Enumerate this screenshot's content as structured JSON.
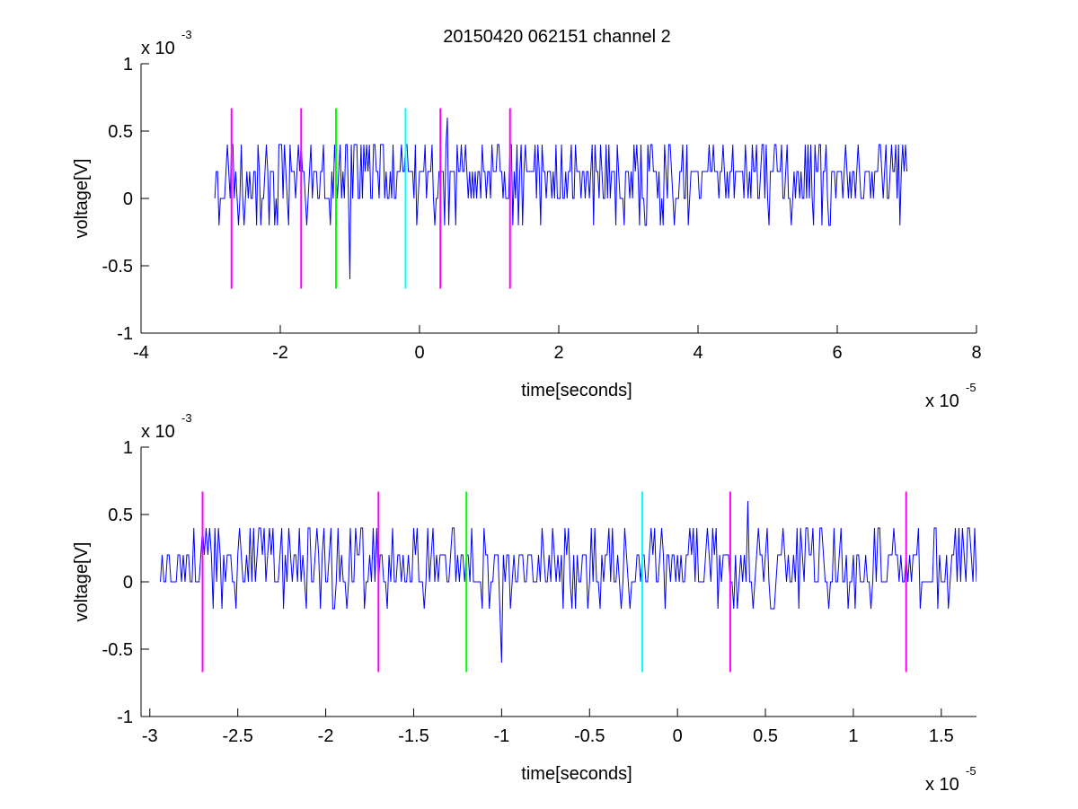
{
  "figure": {
    "title": "20150420 062151 channel 2"
  },
  "chart_data": [
    {
      "type": "line",
      "title": "20150420 062151 channel 2",
      "xlabel": "time[seconds]",
      "ylabel": "voltage[V]",
      "x_exponent_label": "x 10",
      "x_exponent": "-5",
      "y_exponent_label": "x 10",
      "y_exponent": "-3",
      "xlim": [
        -4e-05,
        8e-05
      ],
      "ylim": [
        -0.001,
        0.001
      ],
      "xticks": [
        -4e-05,
        -2e-05,
        0,
        2e-05,
        4e-05,
        6e-05,
        8e-05
      ],
      "xtick_labels": [
        "-4",
        "-2",
        "0",
        "2",
        "4",
        "6",
        "8"
      ],
      "yticks": [
        -0.001,
        -0.0005,
        0,
        0.0005,
        0.001
      ],
      "ytick_labels": [
        "-1",
        "-0.5",
        "0",
        "0.5",
        "1"
      ],
      "grid": false,
      "series": [
        {
          "color": "#0000ff",
          "x_range": [
            -2.94e-05,
            7e-05
          ],
          "sample_step": 2e-07,
          "levels": [
            -0.0002,
            0,
            0.0002,
            0.0004
          ],
          "baseline": 0.0002,
          "notable_points": [
            {
              "x": -1e-05,
              "y": -0.0006
            },
            {
              "x": 4e-06,
              "y": 0.0006
            }
          ]
        }
      ],
      "markers": [
        {
          "x": -2.7e-05,
          "color": "#ff00ff",
          "ymin": -0.00067,
          "ymax": 0.00067
        },
        {
          "x": -1.7e-05,
          "color": "#ff00ff",
          "ymin": -0.00067,
          "ymax": 0.00067
        },
        {
          "x": -1.2e-05,
          "color": "#00ff00",
          "ymin": -0.00067,
          "ymax": 0.00067
        },
        {
          "x": -2e-06,
          "color": "#00ffff",
          "ymin": -0.00067,
          "ymax": 0.00067
        },
        {
          "x": 3e-06,
          "color": "#ff00ff",
          "ymin": -0.00067,
          "ymax": 0.00067
        },
        {
          "x": 1.3e-05,
          "color": "#ff00ff",
          "ymin": -0.00067,
          "ymax": 0.00067
        }
      ]
    },
    {
      "type": "line",
      "title": "",
      "xlabel": "time[seconds]",
      "ylabel": "voltage[V]",
      "x_exponent_label": "x 10",
      "x_exponent": "-5",
      "y_exponent_label": "x 10",
      "y_exponent": "-3",
      "xlim": [
        -3.05e-05,
        1.7e-05
      ],
      "ylim": [
        -0.001,
        0.001
      ],
      "xticks": [
        -3e-05,
        -2.5e-05,
        -2e-05,
        -1.5e-05,
        -1e-05,
        -5e-06,
        0,
        5e-06,
        1e-05,
        1.5e-05
      ],
      "xtick_labels": [
        "-3",
        "-2.5",
        "-2",
        "-1.5",
        "-1",
        "-0.5",
        "0",
        "0.5",
        "1",
        "1.5"
      ],
      "yticks": [
        -0.001,
        -0.0005,
        0,
        0.0005,
        0.001
      ],
      "ytick_labels": [
        "-1",
        "-0.5",
        "0",
        "0.5",
        "1"
      ],
      "grid": false,
      "series": [
        {
          "color": "#0000ff",
          "x_range": [
            -2.94e-05,
            1.7e-05
          ],
          "sample_step": 1e-07,
          "levels": [
            -0.0002,
            0,
            0.0002,
            0.0004
          ],
          "baseline": 0.0002,
          "notable_points": [
            {
              "x": -1e-05,
              "y": -0.0006
            },
            {
              "x": 4e-06,
              "y": 0.0006
            }
          ]
        }
      ],
      "markers": [
        {
          "x": -2.7e-05,
          "color": "#ff00ff",
          "ymin": -0.00067,
          "ymax": 0.00067
        },
        {
          "x": -1.7e-05,
          "color": "#ff00ff",
          "ymin": -0.00067,
          "ymax": 0.00067
        },
        {
          "x": -1.2e-05,
          "color": "#00ff00",
          "ymin": -0.00067,
          "ymax": 0.00067
        },
        {
          "x": -2e-06,
          "color": "#00ffff",
          "ymin": -0.00067,
          "ymax": 0.00067
        },
        {
          "x": 3e-06,
          "color": "#ff00ff",
          "ymin": -0.00067,
          "ymax": 0.00067
        },
        {
          "x": 1.3e-05,
          "color": "#ff00ff",
          "ymin": -0.00067,
          "ymax": 0.00067
        }
      ]
    }
  ]
}
